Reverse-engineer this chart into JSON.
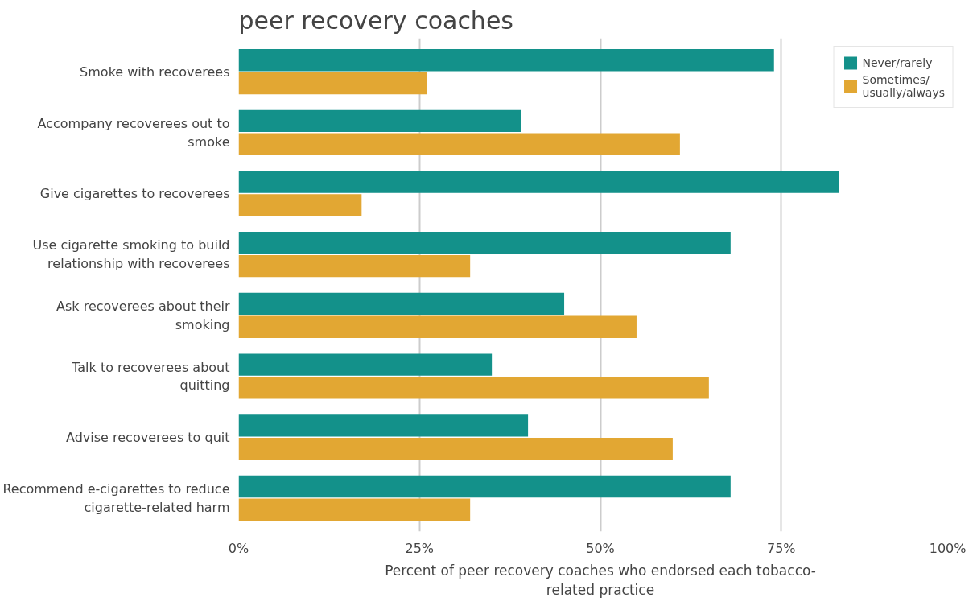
{
  "chart_data": {
    "type": "bar",
    "orientation": "horizontal",
    "title": "peer recovery coaches",
    "xlabel": "Percent of peer recovery coaches who endorsed each tobacco-related practice",
    "categories": [
      "Smoke with recoverees",
      "Accompany recoverees out to smoke",
      "Give cigarettes to recoverees",
      "Use cigarette smoking to build relationship with recoverees",
      "Ask recoverees about their smoking",
      "Talk to recoverees about quitting",
      "Advise recoverees to quit",
      "Recommend e-cigarettes to reduce cigarette-related harm"
    ],
    "series": [
      {
        "name": "Never/rarely",
        "color": "#13918a",
        "values": [
          74,
          39,
          83,
          68,
          45,
          35,
          40,
          68
        ]
      },
      {
        "name": "Sometimes/ usually/always",
        "color": "#e2a733",
        "values": [
          26,
          61,
          17,
          32,
          55,
          65,
          60,
          32
        ]
      }
    ],
    "xlim": [
      0,
      100
    ],
    "xticks": [
      {
        "value": 0,
        "label": "0%"
      },
      {
        "value": 25,
        "label": "25%"
      },
      {
        "value": 50,
        "label": "50%"
      },
      {
        "value": 75,
        "label": "75%"
      },
      {
        "value": 100,
        "label": "100%"
      }
    ],
    "grid": "x",
    "legend": "top right"
  }
}
